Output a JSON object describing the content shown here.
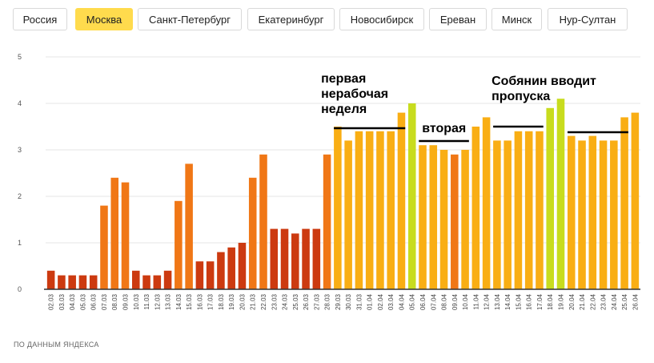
{
  "tabs": [
    {
      "label": "Россия",
      "active": false
    },
    {
      "label": "Москва",
      "active": true
    },
    {
      "label": "Санкт-Петербург",
      "active": false
    },
    {
      "label": "Екатеринбург",
      "active": false
    },
    {
      "label": "Новосибирск",
      "active": false
    },
    {
      "label": "Ереван",
      "active": false
    },
    {
      "label": "Минск",
      "active": false
    },
    {
      "label": "Нур-Султан",
      "active": false
    }
  ],
  "source_note": "ПО ДАННЫМ ЯНДЕКСА",
  "chart_data": {
    "type": "bar",
    "title": "",
    "xlabel": "",
    "ylabel": "",
    "ylim": [
      0,
      5
    ],
    "yticks": [
      0,
      1,
      2,
      3,
      4,
      5
    ],
    "grid": true,
    "categories": [
      "02.03",
      "03.03",
      "04.03",
      "05.03",
      "06.03",
      "07.03",
      "08.03",
      "09.03",
      "10.03",
      "11.03",
      "12.03",
      "13.03",
      "14.03",
      "15.03",
      "16.03",
      "17.03",
      "18.03",
      "19.03",
      "20.03",
      "21.03",
      "22.03",
      "23.03",
      "24.03",
      "25.03",
      "26.03",
      "27.03",
      "28.03",
      "29.03",
      "30.03",
      "31.03",
      "01.04",
      "02.04",
      "03.04",
      "04.04",
      "05.04",
      "06.04",
      "07.04",
      "08.04",
      "09.04",
      "10.04",
      "11.04",
      "12.04",
      "13.04",
      "14.04",
      "15.04",
      "16.04",
      "17.04",
      "18.04",
      "19.04",
      "20.04",
      "21.04",
      "22.04",
      "23.04",
      "24.04",
      "25.04",
      "26.04"
    ],
    "values": [
      0.4,
      0.3,
      0.3,
      0.3,
      0.3,
      1.8,
      2.4,
      2.3,
      0.4,
      0.3,
      0.3,
      0.4,
      1.9,
      2.7,
      0.6,
      0.6,
      0.8,
      0.9,
      1.0,
      2.4,
      2.9,
      1.3,
      1.3,
      1.2,
      1.3,
      1.3,
      2.9,
      3.5,
      3.2,
      3.4,
      3.4,
      3.4,
      3.4,
      3.8,
      4.0,
      3.1,
      3.1,
      3.0,
      2.9,
      3.0,
      3.5,
      3.7,
      3.2,
      3.2,
      3.4,
      3.4,
      3.4,
      3.9,
      4.1,
      3.3,
      3.2,
      3.3,
      3.2,
      3.2,
      3.7,
      3.8
    ],
    "colors": {
      "low": "#cc3a10",
      "mid": "#f07716",
      "high": "#f9ae14",
      "top": "#c8dc1e",
      "axis": "#333333",
      "grid": "#e6e6e6"
    },
    "annotations": [
      {
        "text": "первая\nнерабочая\nнеделя",
        "from": "29.03",
        "to": "04.04"
      },
      {
        "text": "вторая",
        "from": "06.04",
        "to": "10.04"
      },
      {
        "text": "Собянин вводит\nпропуска",
        "from": "13.04",
        "to": "17.04"
      },
      {
        "text": "",
        "from": "20.04",
        "to": "25.04"
      }
    ]
  }
}
